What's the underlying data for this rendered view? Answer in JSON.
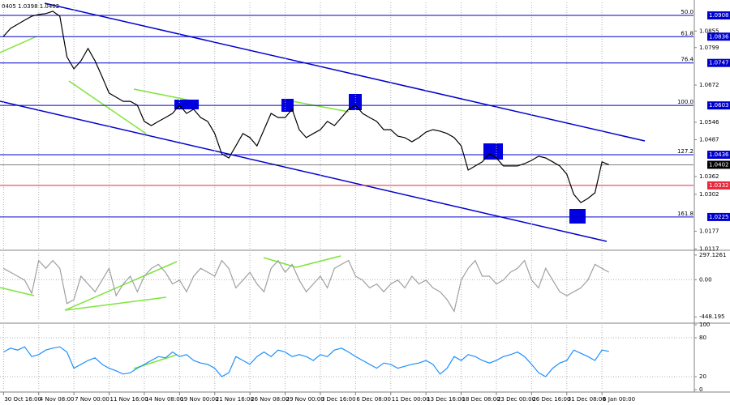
{
  "chart_data": [
    {
      "type": "line",
      "title": "0405 1.0398 1.0402",
      "color": "#000000",
      "xlim": [
        -0.5,
        98
      ],
      "ylim": [
        1.0115,
        1.0952
      ],
      "yticks": [
        1.0855,
        1.0799,
        1.0672,
        1.0546,
        1.0487,
        1.0362,
        1.0302,
        1.0177,
        1.0117
      ],
      "levels": [
        {
          "value": 1.0908,
          "fib": "50.0",
          "color": "#0000cd"
        },
        {
          "value": 1.0836,
          "fib": "61.8",
          "color": "#0000cd"
        },
        {
          "value": 1.0747,
          "fib": "76.4",
          "color": "#0000cd"
        },
        {
          "value": 1.0603,
          "fib": "100.0",
          "color": "#0000cd"
        },
        {
          "value": 1.0436,
          "fib": "127.2",
          "color": "#0000cd"
        },
        {
          "value": 1.0402,
          "color": "#000000"
        },
        {
          "value": 1.0332,
          "color": "#e8283c"
        },
        {
          "value": 1.0225,
          "fib": "161.8",
          "color": "#0000cd"
        }
      ],
      "values": [
        1.0837,
        1.0864,
        1.0878,
        1.0892,
        1.0905,
        1.0911,
        1.0914,
        1.0922,
        1.0905,
        1.0768,
        1.0727,
        1.0754,
        1.0796,
        1.0754,
        1.07,
        1.0645,
        1.0631,
        1.0617,
        1.0617,
        1.0604,
        1.0549,
        1.0535,
        1.0549,
        1.0562,
        1.0576,
        1.0604,
        1.0576,
        1.059,
        1.0562,
        1.0549,
        1.0508,
        1.0439,
        1.0425,
        1.0466,
        1.0508,
        1.0494,
        1.0466,
        1.0521,
        1.0576,
        1.0562,
        1.0562,
        1.059,
        1.0521,
        1.0494,
        1.0508,
        1.0521,
        1.0549,
        1.0535,
        1.0562,
        1.059,
        1.0604,
        1.0576,
        1.0562,
        1.0549,
        1.0521,
        1.0521,
        1.0499,
        1.0494,
        1.048,
        1.0494,
        1.0513,
        1.0521,
        1.0516,
        1.0508,
        1.0494,
        1.0466,
        1.0384,
        1.0398,
        1.0412,
        1.0439,
        1.0425,
        1.0398,
        1.0398,
        1.0398,
        1.0406,
        1.0417,
        1.0431,
        1.0425,
        1.0412,
        1.0398,
        1.037,
        1.0302,
        1.0274,
        1.0288,
        1.0307,
        1.0412,
        1.0402
      ]
    },
    {
      "type": "line",
      "color": "#a0a0a0",
      "xlim": [
        -0.5,
        98
      ],
      "ylim": [
        -495,
        325
      ],
      "yticks": [
        297.1261,
        {
          "value": 0,
          "label": "0.00"
        },
        -448.195
      ],
      "values": [
        137,
        90,
        42,
        -5,
        -165,
        231,
        137,
        231,
        137,
        -288,
        -240,
        42,
        -52,
        -146,
        -5,
        137,
        -193,
        -52,
        42,
        -146,
        42,
        137,
        184,
        90,
        -52,
        -5,
        -146,
        42,
        137,
        90,
        42,
        231,
        137,
        -99,
        -5,
        90,
        -52,
        -146,
        137,
        231,
        90,
        184,
        -5,
        -146,
        -52,
        42,
        -99,
        137,
        184,
        231,
        42,
        -5,
        -99,
        -52,
        -146,
        -52,
        -5,
        -99,
        42,
        -52,
        -5,
        -99,
        -146,
        -240,
        -382,
        -5,
        137,
        231,
        42,
        42,
        -52,
        -5,
        90,
        137,
        231,
        -5,
        -99,
        137,
        -5,
        -146,
        -193,
        -146,
        -99,
        -5,
        184,
        137,
        90
      ]
    },
    {
      "type": "line",
      "color": "#1e90ff",
      "xlim": [
        -0.5,
        98
      ],
      "ylim": [
        0,
        100
      ],
      "yticks": [
        100,
        80,
        20,
        0
      ],
      "xticks": [
        {
          "value": 0,
          "label": "30 Oct 16:00"
        },
        {
          "value": 5,
          "label": "4 Nov 08:00"
        },
        {
          "value": 10,
          "label": "7 Nov 00:00"
        },
        {
          "value": 15,
          "label": "11 Nov 16:00"
        },
        {
          "value": 20,
          "label": "14 Nov 08:00"
        },
        {
          "value": 25,
          "label": "19 Nov 00:00"
        },
        {
          "value": 30,
          "label": "21 Nov 16:00"
        },
        {
          "value": 35,
          "label": "26 Nov 08:00"
        },
        {
          "value": 40,
          "label": "29 Nov 00:00"
        },
        {
          "value": 45,
          "label": "3 Dec 16:00"
        },
        {
          "value": 50,
          "label": "6 Dec 08:00"
        },
        {
          "value": 55,
          "label": "11 Dec 00:00"
        },
        {
          "value": 60,
          "label": "13 Dec 16:00"
        },
        {
          "value": 65,
          "label": "18 Dec 08:00"
        },
        {
          "value": 70,
          "label": "23 Dec 00:00"
        },
        {
          "value": 75,
          "label": "26 Dec 16:00"
        },
        {
          "value": 80,
          "label": "31 Dec 08:00"
        },
        {
          "value": 85,
          "label": "6 Jan 00:00"
        }
      ],
      "values": [
        58,
        64,
        61,
        66,
        51,
        54,
        61,
        64,
        66,
        58,
        33,
        39,
        45,
        49,
        39,
        33,
        29,
        24,
        26,
        33,
        39,
        45,
        51,
        49,
        58,
        51,
        54,
        45,
        41,
        39,
        33,
        20,
        26,
        51,
        45,
        39,
        51,
        58,
        51,
        61,
        58,
        51,
        54,
        51,
        45,
        54,
        51,
        61,
        64,
        58,
        51,
        45,
        39,
        33,
        41,
        39,
        33,
        36,
        39,
        41,
        45,
        39,
        24,
        33,
        51,
        45,
        54,
        51,
        45,
        41,
        45,
        51,
        54,
        58,
        51,
        39,
        26,
        20,
        33,
        41,
        45,
        61,
        56,
        51,
        45,
        61,
        59
      ]
    }
  ]
}
